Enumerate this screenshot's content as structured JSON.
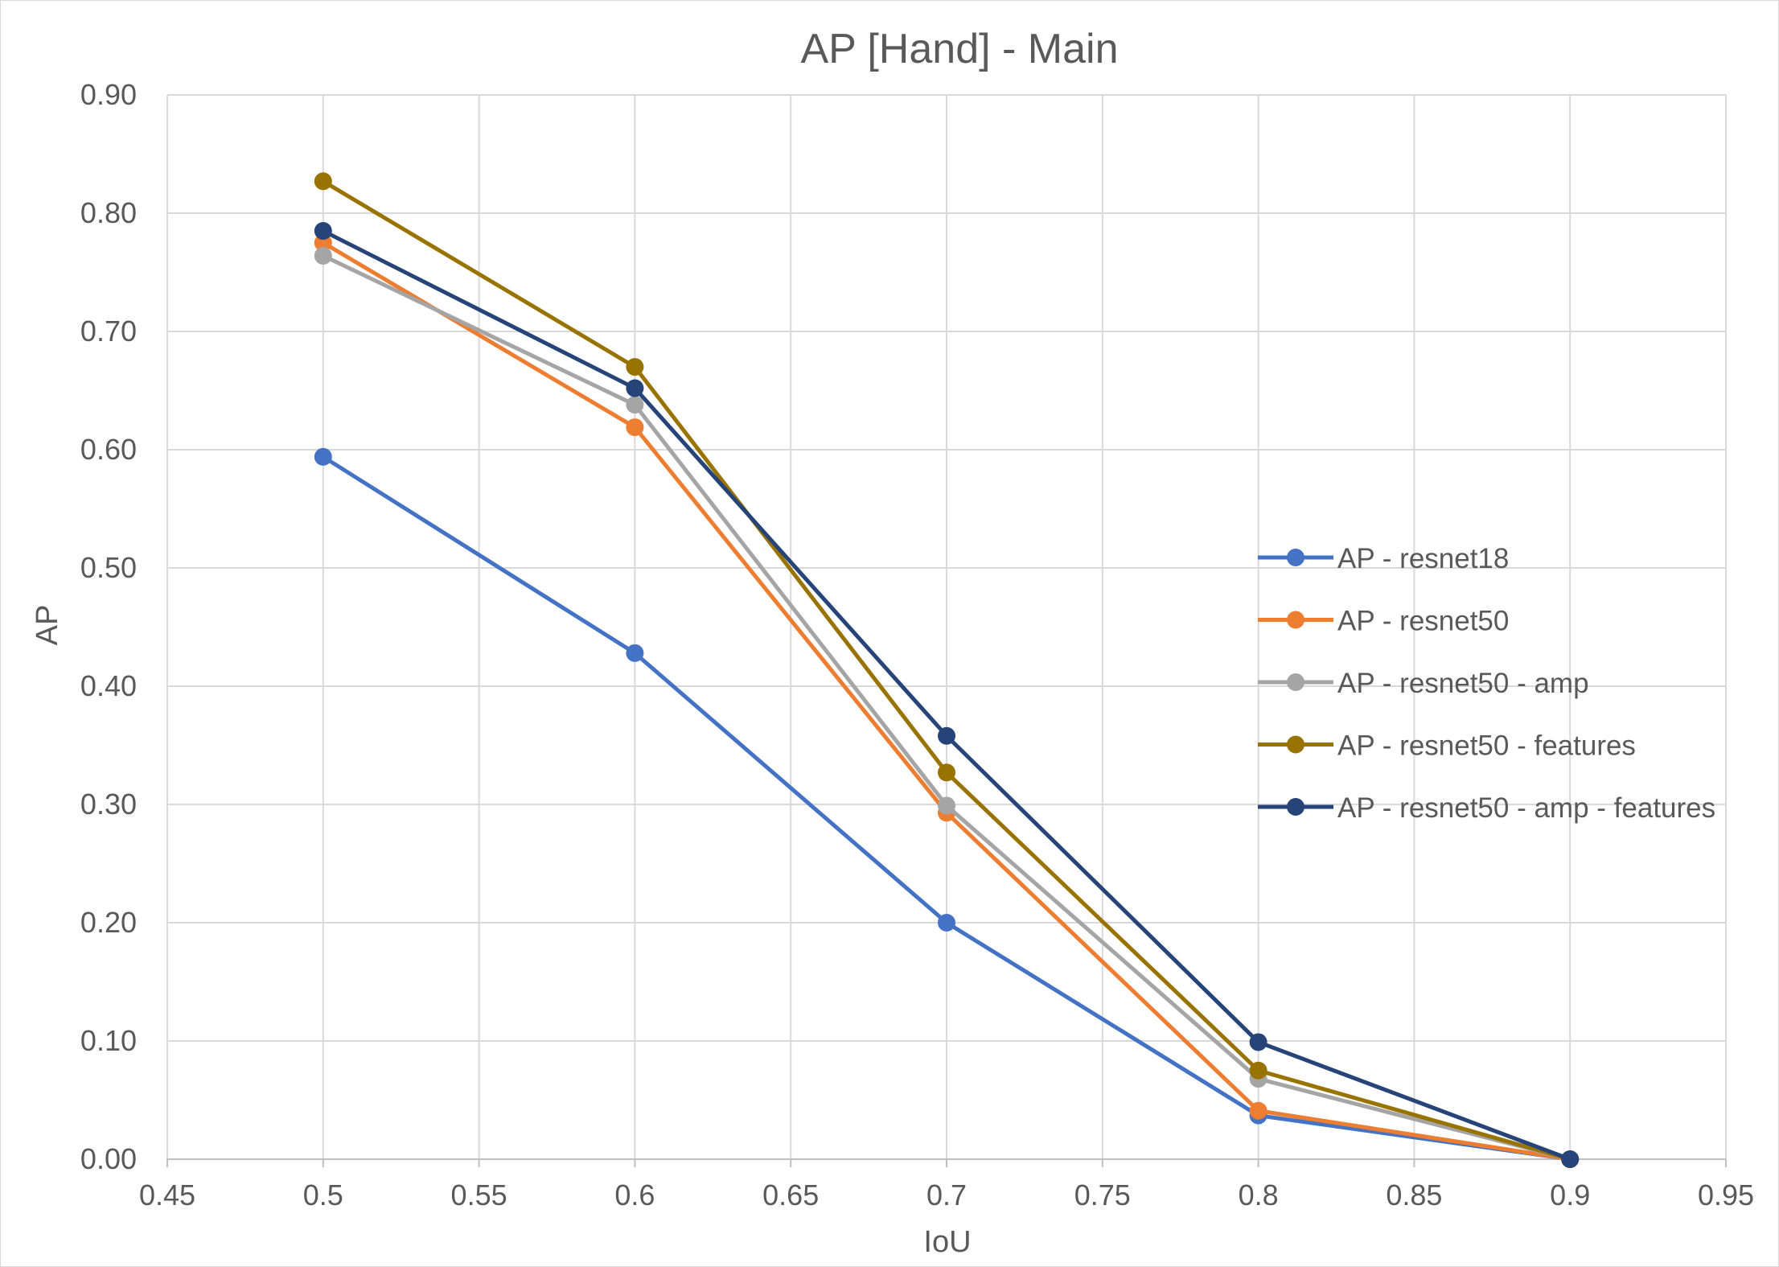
{
  "chart_data": {
    "type": "line",
    "title": "AP [Hand] - Main",
    "xlabel": "IoU",
    "ylabel": "AP",
    "xlim": [
      0.45,
      0.95
    ],
    "ylim": [
      0,
      0.9
    ],
    "x_ticks": [
      "0.45",
      "0.5",
      "0.55",
      "0.6",
      "0.65",
      "0.7",
      "0.75",
      "0.8",
      "0.85",
      "0.9",
      "0.95"
    ],
    "y_ticks": [
      "0.00",
      "0.10",
      "0.20",
      "0.30",
      "0.40",
      "0.50",
      "0.60",
      "0.70",
      "0.80",
      "0.90"
    ],
    "grid": true,
    "legend_position": "right",
    "x": [
      0.5,
      0.6,
      0.7,
      0.8,
      0.9
    ],
    "series": [
      {
        "name": "AP - resnet18",
        "color": "#4472C4",
        "values": [
          0.594,
          0.428,
          0.2,
          0.037,
          0.0
        ]
      },
      {
        "name": "AP - resnet50",
        "color": "#ED7D31",
        "values": [
          0.775,
          0.619,
          0.293,
          0.041,
          0.0
        ]
      },
      {
        "name": "AP - resnet50 - amp",
        "color": "#A5A5A5",
        "values": [
          0.764,
          0.638,
          0.299,
          0.068,
          0.0
        ]
      },
      {
        "name": "AP - resnet50 - features",
        "color": "#997300",
        "values": [
          0.827,
          0.67,
          0.327,
          0.075,
          0.0
        ]
      },
      {
        "name": "AP - resnet50 - amp - features",
        "color": "#264478",
        "values": [
          0.785,
          0.652,
          0.358,
          0.099,
          0.0
        ]
      }
    ]
  }
}
